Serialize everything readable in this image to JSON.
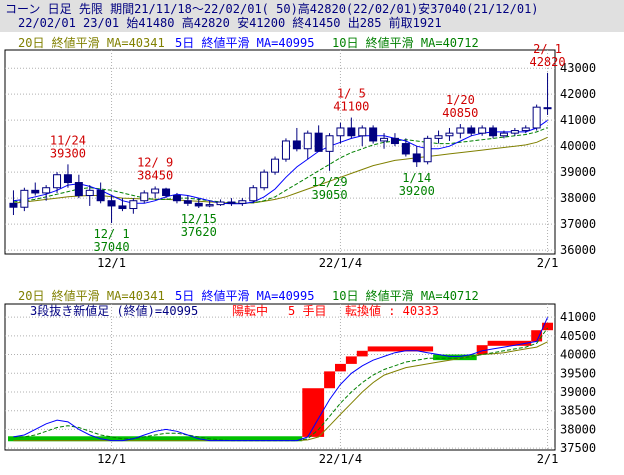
{
  "header": {
    "line1": "コーン 日足 先限 期間21/11/18～22/02/01( 50)高42820(22/02/01)安37040(21/12/01)",
    "line2": "22/02/01 23/01 始41480 高42820 安41200 終41450 出285 前取1921"
  },
  "colors": {
    "frame": "#000000",
    "grid": "#b0b0b0",
    "up": "#ffffff",
    "down": "#000080",
    "ma20": "#808000",
    "ma5": "#0000ff",
    "ma10": "#008000",
    "peak_label": "#d00000",
    "trough_label": "#008000",
    "brick_up": "#ff0000",
    "brick_down": "#00c000",
    "header_bg": "#e0e0e0"
  },
  "chart_data": [
    {
      "type": "candlestick",
      "ma_legend": {
        "ma20": "20日 終値平滑 MA=40341",
        "ma5": "5日 終値平滑 MA=40995",
        "ma10": "10日 終値平滑 MA=40712"
      },
      "ylim": [
        35850,
        43700
      ],
      "y_ticks": [
        "43000",
        "42000",
        "41000",
        "40000",
        "39000",
        "38000",
        "37000",
        "36000"
      ],
      "x_ticks": [
        {
          "label": "12/1",
          "index": 9
        },
        {
          "label": "22/1/4",
          "index": 30
        },
        {
          "label": "2/1",
          "index": 49
        }
      ],
      "candles": [
        {
          "o": 37800,
          "h": 38300,
          "l": 37350,
          "c": 37650
        },
        {
          "o": 37650,
          "h": 38400,
          "l": 37500,
          "c": 38300
        },
        {
          "o": 38300,
          "h": 38600,
          "l": 38100,
          "c": 38200
        },
        {
          "o": 38200,
          "h": 38500,
          "l": 37900,
          "c": 38400
        },
        {
          "o": 38400,
          "h": 39000,
          "l": 38200,
          "c": 38900
        },
        {
          "o": 38900,
          "h": 39300,
          "l": 38400,
          "c": 38600
        },
        {
          "o": 38600,
          "h": 38900,
          "l": 38000,
          "c": 38100
        },
        {
          "o": 38100,
          "h": 38500,
          "l": 37700,
          "c": 38300
        },
        {
          "o": 38300,
          "h": 38600,
          "l": 37800,
          "c": 37900
        },
        {
          "o": 37900,
          "h": 38100,
          "l": 37040,
          "c": 37700
        },
        {
          "o": 37700,
          "h": 38000,
          "l": 37500,
          "c": 37600
        },
        {
          "o": 37600,
          "h": 38000,
          "l": 37400,
          "c": 37900
        },
        {
          "o": 37900,
          "h": 38300,
          "l": 37800,
          "c": 38200
        },
        {
          "o": 38200,
          "h": 38450,
          "l": 38000,
          "c": 38350
        },
        {
          "o": 38350,
          "h": 38400,
          "l": 38000,
          "c": 38100
        },
        {
          "o": 38100,
          "h": 38200,
          "l": 37800,
          "c": 37900
        },
        {
          "o": 37900,
          "h": 38100,
          "l": 37700,
          "c": 37800
        },
        {
          "o": 37800,
          "h": 38000,
          "l": 37620,
          "c": 37700
        },
        {
          "o": 37700,
          "h": 37900,
          "l": 37650,
          "c": 37750
        },
        {
          "o": 37750,
          "h": 37950,
          "l": 37700,
          "c": 37850
        },
        {
          "o": 37850,
          "h": 38000,
          "l": 37700,
          "c": 37800
        },
        {
          "o": 37800,
          "h": 38000,
          "l": 37700,
          "c": 37900
        },
        {
          "o": 37900,
          "h": 38500,
          "l": 37800,
          "c": 38400
        },
        {
          "o": 38400,
          "h": 39100,
          "l": 38300,
          "c": 39000
        },
        {
          "o": 39000,
          "h": 39600,
          "l": 38900,
          "c": 39500
        },
        {
          "o": 39500,
          "h": 40300,
          "l": 39400,
          "c": 40200
        },
        {
          "o": 40200,
          "h": 40700,
          "l": 39800,
          "c": 39900
        },
        {
          "o": 39900,
          "h": 40600,
          "l": 39500,
          "c": 40500
        },
        {
          "o": 40500,
          "h": 40800,
          "l": 39800,
          "c": 39800
        },
        {
          "o": 39800,
          "h": 40500,
          "l": 39050,
          "c": 40400
        },
        {
          "o": 40400,
          "h": 40900,
          "l": 40100,
          "c": 40700
        },
        {
          "o": 40700,
          "h": 41100,
          "l": 40300,
          "c": 40400
        },
        {
          "o": 40400,
          "h": 40800,
          "l": 40000,
          "c": 40700
        },
        {
          "o": 40700,
          "h": 40800,
          "l": 40100,
          "c": 40200
        },
        {
          "o": 40200,
          "h": 40500,
          "l": 39900,
          "c": 40300
        },
        {
          "o": 40300,
          "h": 40500,
          "l": 40000,
          "c": 40100
        },
        {
          "o": 40100,
          "h": 40300,
          "l": 39600,
          "c": 39700
        },
        {
          "o": 39700,
          "h": 40000,
          "l": 39200,
          "c": 39400
        },
        {
          "o": 39400,
          "h": 40400,
          "l": 39300,
          "c": 40300
        },
        {
          "o": 40300,
          "h": 40600,
          "l": 40100,
          "c": 40400
        },
        {
          "o": 40400,
          "h": 40700,
          "l": 40200,
          "c": 40500
        },
        {
          "o": 40500,
          "h": 40850,
          "l": 40300,
          "c": 40700
        },
        {
          "o": 40700,
          "h": 40800,
          "l": 40400,
          "c": 40500
        },
        {
          "o": 40500,
          "h": 40800,
          "l": 40400,
          "c": 40700
        },
        {
          "o": 40700,
          "h": 40800,
          "l": 40300,
          "c": 40400
        },
        {
          "o": 40400,
          "h": 40600,
          "l": 40300,
          "c": 40500
        },
        {
          "o": 40500,
          "h": 40700,
          "l": 40400,
          "c": 40600
        },
        {
          "o": 40600,
          "h": 40800,
          "l": 40500,
          "c": 40700
        },
        {
          "o": 40700,
          "h": 41600,
          "l": 40600,
          "c": 41500
        },
        {
          "o": 41480,
          "h": 42820,
          "l": 41200,
          "c": 41450
        }
      ],
      "ma20": [
        37800,
        37850,
        37900,
        37950,
        38000,
        38050,
        38080,
        38100,
        38100,
        38050,
        38000,
        37980,
        37970,
        37960,
        37950,
        37930,
        37900,
        37880,
        37850,
        37830,
        37810,
        37800,
        37820,
        37880,
        37950,
        38050,
        38200,
        38350,
        38500,
        38650,
        38800,
        38950,
        39100,
        39250,
        39350,
        39450,
        39500,
        39550,
        39600,
        39650,
        39700,
        39750,
        39800,
        39850,
        39900,
        39950,
        40000,
        40050,
        40150,
        40341
      ],
      "ma5": [
        37900,
        37950,
        38050,
        38150,
        38300,
        38500,
        38550,
        38450,
        38300,
        38100,
        37900,
        37800,
        37800,
        37900,
        38050,
        38150,
        38100,
        38000,
        37900,
        37800,
        37780,
        37780,
        37850,
        38050,
        38350,
        38800,
        39200,
        39500,
        39800,
        40000,
        40150,
        40300,
        40400,
        40400,
        40400,
        40300,
        40200,
        40000,
        39900,
        39900,
        40000,
        40200,
        40400,
        40500,
        40550,
        40550,
        40550,
        40550,
        40700,
        40995
      ],
      "ma10": [
        37850,
        37900,
        37950,
        38050,
        38150,
        38250,
        38350,
        38400,
        38350,
        38300,
        38200,
        38100,
        38000,
        37950,
        37950,
        38000,
        38000,
        37950,
        37900,
        37850,
        37820,
        37800,
        37820,
        37900,
        38050,
        38300,
        38550,
        38800,
        39050,
        39300,
        39550,
        39750,
        39900,
        40050,
        40150,
        40200,
        40250,
        40200,
        40150,
        40100,
        40100,
        40150,
        40200,
        40250,
        40300,
        40350,
        40400,
        40450,
        40550,
        40712
      ],
      "annotations": [
        {
          "kind": "peak",
          "date": "11/24",
          "value": "39300",
          "index": 5
        },
        {
          "kind": "trough",
          "date": "12/ 1",
          "value": "37040",
          "index": 9
        },
        {
          "kind": "peak",
          "date": "12/ 9",
          "value": "38450",
          "index": 13
        },
        {
          "kind": "trough",
          "date": "12/15",
          "value": "37620",
          "index": 17
        },
        {
          "kind": "trough",
          "date": "12/29",
          "value": "39050",
          "index": 29
        },
        {
          "kind": "peak",
          "date": "1/ 5",
          "value": "41100",
          "index": 31
        },
        {
          "kind": "trough",
          "date": "1/14",
          "value": "39200",
          "index": 37
        },
        {
          "kind": "peak",
          "date": "1/20",
          "value": "40850",
          "index": 41
        },
        {
          "kind": "peak",
          "date": "2/ 1",
          "value": "42820",
          "index": 49
        }
      ]
    },
    {
      "type": "three-line-break",
      "ma_legend": {
        "ma20": "20日 終値平滑 MA=40341",
        "ma5": "5日 終値平滑 MA=40995",
        "ma10": "10日 終値平滑 MA=40712"
      },
      "info": {
        "title": "3段抜き新値足 (終値)=40995",
        "state": "陽転中",
        "count": "5 手目",
        "reversal": "転換値 : 40333"
      },
      "ylim": [
        37450,
        41350
      ],
      "y_ticks": [
        "41000",
        "40500",
        "40000",
        "39500",
        "39000",
        "38500",
        "38000",
        "37500"
      ],
      "x_ticks": [
        {
          "label": "12/1",
          "index": 9
        },
        {
          "label": "22/1/4",
          "index": 30
        },
        {
          "label": "2/1",
          "index": 49
        }
      ],
      "bricks": [
        {
          "from": 37700,
          "to": 37800,
          "start": 0,
          "end": 27,
          "dir": "down"
        },
        {
          "from": 37800,
          "to": 39100,
          "start": 27,
          "end": 29,
          "dir": "up"
        },
        {
          "from": 39100,
          "to": 39550,
          "start": 29,
          "end": 30,
          "dir": "up"
        },
        {
          "from": 39550,
          "to": 39750,
          "start": 30,
          "end": 31,
          "dir": "up"
        },
        {
          "from": 39750,
          "to": 39950,
          "start": 31,
          "end": 32,
          "dir": "up"
        },
        {
          "from": 39950,
          "to": 40100,
          "start": 32,
          "end": 33,
          "dir": "up"
        },
        {
          "from": 40100,
          "to": 40200,
          "start": 33,
          "end": 39,
          "dir": "up"
        },
        {
          "from": 40000,
          "to": 39850,
          "start": 39,
          "end": 43,
          "dir": "down"
        },
        {
          "from": 40000,
          "to": 40250,
          "start": 43,
          "end": 44,
          "dir": "up"
        },
        {
          "from": 40250,
          "to": 40350,
          "start": 44,
          "end": 48,
          "dir": "up"
        },
        {
          "from": 40350,
          "to": 40650,
          "start": 48,
          "end": 49,
          "dir": "up"
        },
        {
          "from": 40650,
          "to": 40850,
          "start": 49,
          "end": 50,
          "dir": "up"
        }
      ],
      "ma20": [
        37700,
        37700,
        37700,
        37700,
        37700,
        37700,
        37700,
        37700,
        37700,
        37700,
        37700,
        37700,
        37700,
        37700,
        37700,
        37700,
        37700,
        37700,
        37700,
        37700,
        37700,
        37700,
        37700,
        37700,
        37700,
        37700,
        37700,
        37720,
        37800,
        38100,
        38400,
        38700,
        39000,
        39250,
        39450,
        39550,
        39650,
        39700,
        39750,
        39800,
        39850,
        39900,
        39950,
        40000,
        40020,
        40050,
        40100,
        40150,
        40200,
        40341
      ],
      "ma5": [
        37800,
        37850,
        38000,
        38150,
        38250,
        38200,
        38000,
        37850,
        37750,
        37700,
        37700,
        37750,
        37850,
        37950,
        38000,
        37950,
        37850,
        37750,
        37700,
        37700,
        37700,
        37700,
        37700,
        37700,
        37700,
        37700,
        37700,
        37800,
        38300,
        38800,
        39200,
        39500,
        39700,
        39850,
        39950,
        40050,
        40100,
        40100,
        40050,
        40000,
        39950,
        39950,
        40000,
        40100,
        40150,
        40200,
        40250,
        40300,
        40350,
        40995
      ],
      "ma10": [
        37800,
        37800,
        37850,
        37950,
        38050,
        38100,
        38050,
        37950,
        37850,
        37800,
        37750,
        37750,
        37800,
        37850,
        37900,
        37900,
        37850,
        37800,
        37750,
        37720,
        37700,
        37700,
        37700,
        37700,
        37700,
        37700,
        37700,
        37750,
        38000,
        38350,
        38700,
        39000,
        39250,
        39450,
        39600,
        39700,
        39800,
        39850,
        39900,
        39900,
        39900,
        39900,
        39950,
        40000,
        40050,
        40100,
        40150,
        40200,
        40300,
        40712
      ]
    }
  ]
}
